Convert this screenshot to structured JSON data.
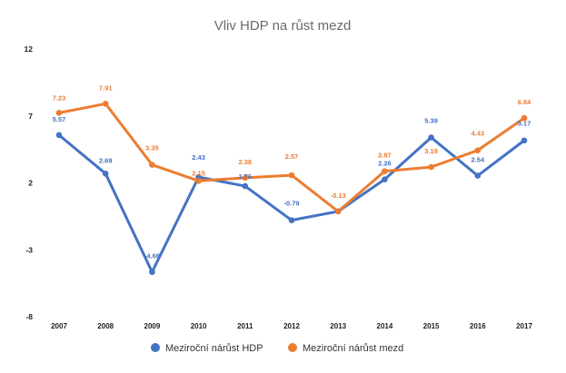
{
  "chart_data": {
    "type": "line",
    "title": "Vliv HDP na růst mezd",
    "x": [
      "2007",
      "2008",
      "2009",
      "2010",
      "2011",
      "2012",
      "2013",
      "2014",
      "2015",
      "2016",
      "2017"
    ],
    "y_ticks": [
      "12",
      "7",
      "2",
      "-3",
      "-8"
    ],
    "ylim": [
      -8,
      12
    ],
    "grid": false,
    "legend_position": "bottom",
    "series": [
      {
        "name": "Meziroční nárůst HDP",
        "color": "#4472c4",
        "values": [
          5.57,
          2.69,
          -4.66,
          2.43,
          1.76,
          -0.79,
          -0.13,
          2.26,
          5.39,
          2.54,
          5.17
        ],
        "labels": [
          "5.57",
          "2.69",
          "-4.66",
          "2.43",
          "1.76",
          "-0.79",
          "",
          "2.26",
          "5.39",
          "2.54",
          "5.17"
        ]
      },
      {
        "name": "Meziroční nárůst mezd",
        "color": "#ed7d31",
        "values": [
          7.23,
          7.91,
          3.35,
          2.15,
          2.38,
          2.57,
          -0.13,
          2.87,
          3.18,
          4.43,
          6.84
        ],
        "labels": [
          "7.23",
          "7.91",
          "3.35",
          "2.15",
          "2.38",
          "2.57",
          "-0.13",
          "2.87",
          "3.18",
          "4.43",
          "6.84"
        ]
      }
    ]
  }
}
